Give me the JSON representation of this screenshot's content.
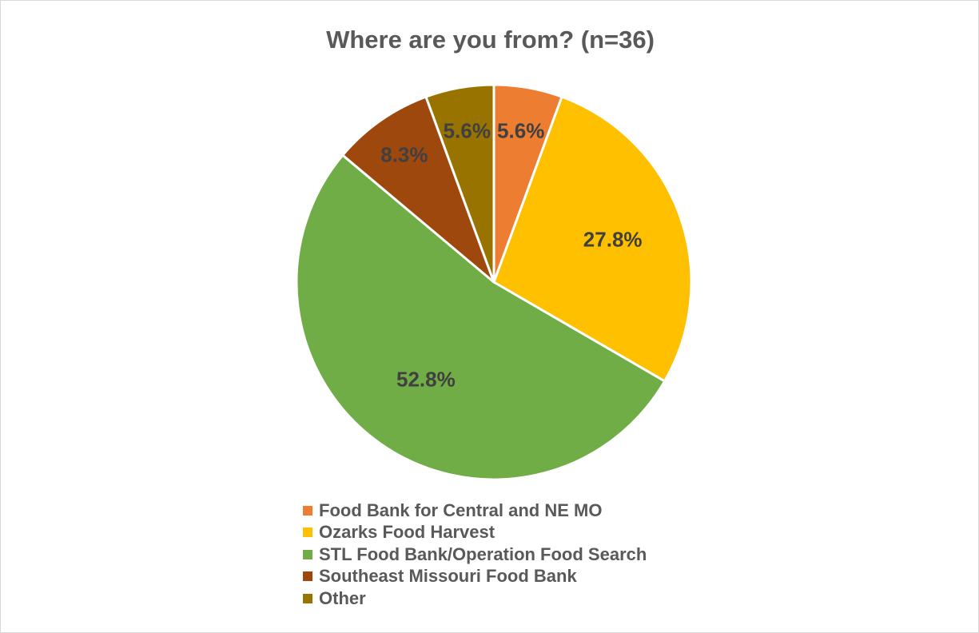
{
  "chart_data": {
    "type": "pie",
    "title": "Where are you from? (n=36)",
    "legend_position": "bottom",
    "slices": [
      {
        "name": "Food Bank for Central and NE MO",
        "value": 5.6,
        "label": "5.6%",
        "color": "#ED7D31"
      },
      {
        "name": "Ozarks Food Harvest",
        "value": 27.8,
        "label": "27.8%",
        "color": "#FFC000"
      },
      {
        "name": "STL Food Bank/Operation Food Search",
        "value": 52.8,
        "label": "52.8%",
        "color": "#70AD47"
      },
      {
        "name": "Southeast Missouri Food Bank",
        "value": 8.3,
        "label": "8.3%",
        "color": "#9E480E"
      },
      {
        "name": "Other",
        "value": 5.6,
        "label": "5.6%",
        "color": "#997300"
      }
    ]
  }
}
